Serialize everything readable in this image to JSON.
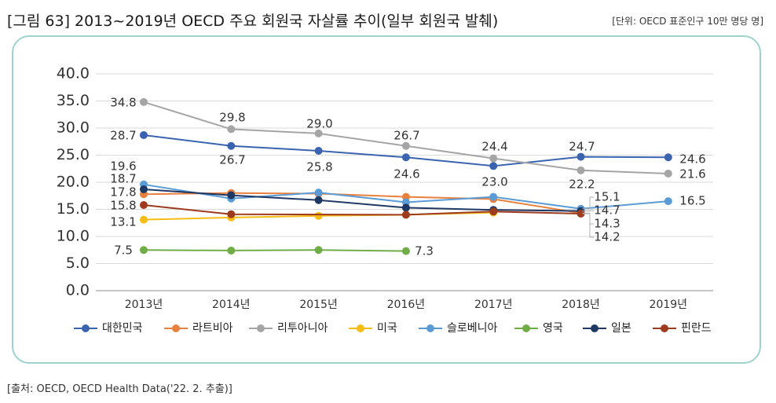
{
  "header": {
    "title": "[그림 63] 2013~2019년 OECD 주요 회원국 자살률 추이(일부 회원국 발췌)",
    "unit": "[단위: OECD 표준인구 10만 명당 명]"
  },
  "footer": {
    "source": "[출처: OECD, OECD Health Data('22. 2. 추출)]"
  },
  "chart_data": {
    "type": "line",
    "categories": [
      "2013년",
      "2014년",
      "2015년",
      "2016년",
      "2017년",
      "2018년",
      "2019년"
    ],
    "ylim": [
      0,
      40
    ],
    "yticks": [
      "0.0",
      "5.0",
      "10.0",
      "15.0",
      "20.0",
      "25.0",
      "30.0",
      "35.0",
      "40.0"
    ],
    "grid": true,
    "legend": "bottom",
    "series": [
      {
        "name": "대한민국",
        "color": "#3b64b0",
        "values": [
          28.7,
          26.7,
          25.8,
          24.6,
          23.0,
          24.7,
          24.6
        ]
      },
      {
        "name": "라트비아",
        "color": "#e8803e",
        "values": [
          17.8,
          18.0,
          17.9,
          17.3,
          16.9,
          14.3,
          null
        ]
      },
      {
        "name": "리투아니아",
        "color": "#a5a5a5",
        "values": [
          34.8,
          29.8,
          29.0,
          26.7,
          24.4,
          22.2,
          21.6
        ]
      },
      {
        "name": "미국",
        "color": "#f5bd15",
        "values": [
          13.1,
          13.5,
          13.8,
          14.0,
          14.4,
          null,
          null
        ]
      },
      {
        "name": "슬로베니아",
        "color": "#5b9bd5",
        "values": [
          19.6,
          17.0,
          18.1,
          16.3,
          17.3,
          15.1,
          16.5
        ]
      },
      {
        "name": "영국",
        "color": "#70ad47",
        "values": [
          7.5,
          7.4,
          7.5,
          7.3,
          null,
          null,
          null
        ]
      },
      {
        "name": "일본",
        "color": "#1f3864",
        "values": [
          18.7,
          17.6,
          16.7,
          15.3,
          14.9,
          14.7,
          null
        ]
      },
      {
        "name": "핀란드",
        "color": "#9e3b1f",
        "values": [
          15.8,
          14.1,
          null,
          14.0,
          14.6,
          14.2,
          null
        ]
      }
    ],
    "data_labels": [
      {
        "series": 2,
        "index": 0,
        "text": "34.8"
      },
      {
        "series": 2,
        "index": 1,
        "text": "29.8"
      },
      {
        "series": 2,
        "index": 2,
        "text": "29.0"
      },
      {
        "series": 2,
        "index": 3,
        "text": "26.7"
      },
      {
        "series": 2,
        "index": 4,
        "text": "24.4"
      },
      {
        "series": 2,
        "index": 5,
        "text": "22.2"
      },
      {
        "series": 2,
        "index": 6,
        "text": "21.6"
      },
      {
        "series": 0,
        "index": 0,
        "text": "28.7"
      },
      {
        "series": 0,
        "index": 1,
        "text": "26.7"
      },
      {
        "series": 0,
        "index": 2,
        "text": "25.8"
      },
      {
        "series": 0,
        "index": 3,
        "text": "24.6"
      },
      {
        "series": 0,
        "index": 4,
        "text": "23.0"
      },
      {
        "series": 0,
        "index": 5,
        "text": "24.7"
      },
      {
        "series": 0,
        "index": 6,
        "text": "24.6"
      },
      {
        "series": 4,
        "index": 0,
        "text": "19.6"
      },
      {
        "series": 6,
        "index": 0,
        "text": "18.7"
      },
      {
        "series": 1,
        "index": 0,
        "text": "17.8"
      },
      {
        "series": 7,
        "index": 0,
        "text": "15.8"
      },
      {
        "series": 3,
        "index": 0,
        "text": "13.1"
      },
      {
        "series": 5,
        "index": 0,
        "text": "7.5"
      },
      {
        "series": 5,
        "index": 3,
        "text": "7.3"
      },
      {
        "series": 4,
        "index": 6,
        "text": "16.5"
      },
      {
        "series": 4,
        "index": 5,
        "text": "15.1"
      },
      {
        "series": 6,
        "index": 5,
        "text": "14.7"
      },
      {
        "series": 1,
        "index": 5,
        "text": "14.3"
      },
      {
        "series": 7,
        "index": 5,
        "text": "14.2"
      }
    ]
  }
}
